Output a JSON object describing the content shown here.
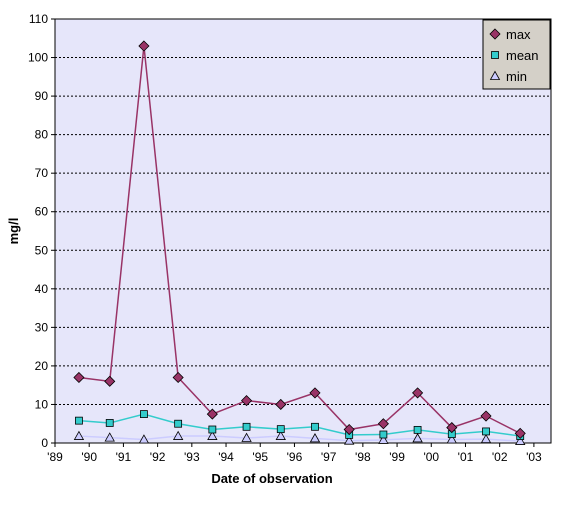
{
  "chart_data": {
    "type": "line",
    "title": "",
    "xlabel": "Date of observation",
    "ylabel": "mg/l",
    "xlim": [
      1989,
      2003.5
    ],
    "ylim": [
      0,
      110
    ],
    "x_tick_values": [
      1989,
      1990,
      1991,
      1992,
      1993,
      1994,
      1995,
      1996,
      1997,
      1998,
      1999,
      2000,
      2001,
      2002,
      2003
    ],
    "x_tick_labels": [
      "'89",
      "'90",
      "'91",
      "'92",
      "'93",
      "'94",
      "'95",
      "'96",
      "'97",
      "'98",
      "'99",
      "'00",
      "'01",
      "'02",
      "'03"
    ],
    "y_ticks": [
      0,
      10,
      20,
      30,
      40,
      50,
      60,
      70,
      80,
      90,
      100,
      110
    ],
    "grid": true,
    "legend_position": "top-right",
    "x": [
      1989.7,
      1990.6,
      1991.6,
      1992.6,
      1993.6,
      1994.6,
      1995.6,
      1996.6,
      1997.6,
      1998.6,
      1999.6,
      2000.6,
      2001.6,
      2002.6
    ],
    "series": [
      {
        "name": "max",
        "marker": "diamond",
        "color": "#993366",
        "values": [
          17,
          16,
          103,
          17,
          7.5,
          11,
          10,
          13,
          3.5,
          5,
          13,
          4,
          7,
          2.5
        ]
      },
      {
        "name": "mean",
        "marker": "square",
        "color": "#33CCCC",
        "values": [
          5.8,
          5.2,
          7.5,
          5,
          3.5,
          4.2,
          3.6,
          4.2,
          2.1,
          2.2,
          3.4,
          2.3,
          3,
          1.8
        ]
      },
      {
        "name": "min",
        "marker": "triangle",
        "color": "#CCCCFF",
        "values": [
          1.8,
          1.4,
          0.9,
          1.8,
          1.8,
          1.3,
          1.8,
          1.2,
          0.6,
          0.8,
          1.2,
          0.9,
          1,
          0.5
        ]
      }
    ]
  },
  "colors": {
    "plot_background": "#E6E6FA",
    "max_line": "#993366",
    "max_marker": "#993366",
    "mean_line": "#33CCCC",
    "mean_marker": "#33CCCC",
    "min_line": "#CCCCFF",
    "min_marker": "#CCCCFF",
    "legend_background": "#D4D0C8"
  }
}
